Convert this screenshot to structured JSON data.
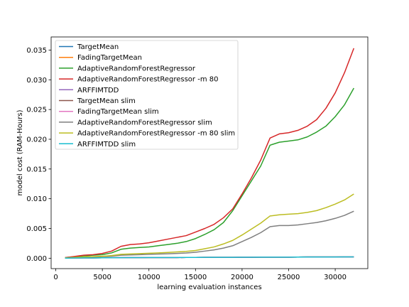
{
  "chart_data": {
    "type": "line",
    "xlabel": "learning evaluation instances",
    "ylabel": "model cost (RAM-Hours)",
    "xlim": [
      -500,
      33500
    ],
    "ylim": [
      -0.00175,
      0.0372
    ],
    "xticks": [
      0,
      5000,
      10000,
      15000,
      20000,
      25000,
      30000
    ],
    "xtick_labels": [
      "0",
      "5000",
      "10000",
      "15000",
      "20000",
      "25000",
      "30000"
    ],
    "yticks": [
      0.0,
      0.005,
      0.01,
      0.015,
      0.02,
      0.025,
      0.03,
      0.035
    ],
    "ytick_labels": [
      "0.000",
      "0.005",
      "0.010",
      "0.015",
      "0.020",
      "0.025",
      "0.030",
      "0.035"
    ],
    "grid": false,
    "legend_position": "top-left",
    "x": [
      1000,
      2000,
      3000,
      4000,
      5000,
      6000,
      7000,
      8000,
      9000,
      10000,
      11000,
      12000,
      13000,
      14000,
      15000,
      16000,
      17000,
      18000,
      19000,
      20000,
      21000,
      22000,
      23000,
      24000,
      25000,
      26000,
      27000,
      28000,
      29000,
      30000,
      31000,
      32000
    ],
    "series": [
      {
        "name": "TargetMean",
        "color": "#1f77b4",
        "values": [
          2e-05,
          4e-05,
          5e-05,
          6e-05,
          7e-05,
          8e-05,
          9e-05,
          0.0001,
          0.0001,
          0.00011,
          0.00011,
          0.00012,
          0.00012,
          0.00013,
          0.00013,
          0.00014,
          0.00014,
          0.00015,
          0.00015,
          0.00016,
          0.00016,
          0.00017,
          0.00017,
          0.00018,
          0.00018,
          0.00019,
          0.0002,
          0.0002,
          0.00021,
          0.00021,
          0.00022,
          0.00022
        ]
      },
      {
        "name": "FadingTargetMean",
        "color": "#ff7f0e",
        "values": [
          2e-05,
          4e-05,
          5e-05,
          6e-05,
          7e-05,
          8e-05,
          9e-05,
          0.0001,
          0.0001,
          0.00011,
          0.00011,
          0.00012,
          0.00012,
          0.00013,
          0.00013,
          0.00014,
          0.00014,
          0.00015,
          0.00015,
          0.00016,
          0.00016,
          0.00017,
          0.00017,
          0.00018,
          0.00018,
          0.00019,
          0.0002,
          0.0002,
          0.00021,
          0.00021,
          0.00022,
          0.00022
        ]
      },
      {
        "name": "AdaptiveRandomForestRegressor",
        "color": "#2ca02c",
        "values": [
          0.0001,
          0.00025,
          0.0004,
          0.0005,
          0.0006,
          0.0009,
          0.0015,
          0.0017,
          0.0018,
          0.0019,
          0.0021,
          0.0023,
          0.0025,
          0.0028,
          0.0033,
          0.004,
          0.0048,
          0.006,
          0.008,
          0.0105,
          0.013,
          0.0155,
          0.019,
          0.0195,
          0.0197,
          0.0199,
          0.0204,
          0.0212,
          0.0222,
          0.0238,
          0.0258,
          0.0286
        ]
      },
      {
        "name": "AdaptiveRandomForestRegressor -m 80",
        "color": "#d62728",
        "values": [
          0.0001,
          0.0003,
          0.0005,
          0.0006,
          0.0008,
          0.0012,
          0.002,
          0.0023,
          0.0024,
          0.0026,
          0.0029,
          0.0032,
          0.0035,
          0.0038,
          0.0044,
          0.005,
          0.0057,
          0.0068,
          0.0083,
          0.0108,
          0.0135,
          0.0165,
          0.0202,
          0.0209,
          0.0211,
          0.0215,
          0.0222,
          0.0233,
          0.0252,
          0.0278,
          0.0312,
          0.0353
        ]
      },
      {
        "name": "ARFFIMTDD",
        "color": "#9467bd",
        "values": [
          2e-05,
          4e-05,
          5e-05,
          6e-05,
          7e-05,
          8e-05,
          9e-05,
          0.0001,
          0.0001,
          0.00011,
          0.00011,
          0.00012,
          0.00012,
          0.00013,
          0.00013,
          0.00014,
          0.00014,
          0.00015,
          0.00015,
          0.00016,
          0.00016,
          0.00017,
          0.00017,
          0.00018,
          0.00018,
          0.00019,
          0.0002,
          0.0002,
          0.00021,
          0.00021,
          0.00022,
          0.00022
        ]
      },
      {
        "name": "TargetMean slim",
        "color": "#8c564b",
        "values": [
          2e-05,
          4e-05,
          5e-05,
          6e-05,
          7e-05,
          8e-05,
          9e-05,
          0.0001,
          0.0001,
          0.00011,
          0.00011,
          0.00012,
          0.00012,
          0.00013,
          0.00013,
          0.00014,
          0.00014,
          0.00015,
          0.00015,
          0.00016,
          0.00016,
          0.00017,
          0.00017,
          0.00018,
          0.00018,
          0.00019,
          0.0002,
          0.0002,
          0.00021,
          0.00021,
          0.00022,
          0.00022
        ]
      },
      {
        "name": "FadingTargetMean slim",
        "color": "#e377c2",
        "values": [
          2e-05,
          4e-05,
          5e-05,
          6e-05,
          7e-05,
          8e-05,
          9e-05,
          0.0001,
          0.0001,
          0.00011,
          0.00011,
          0.00012,
          0.00012,
          0.00013,
          0.00013,
          0.00014,
          0.00014,
          0.00015,
          0.00015,
          0.00016,
          0.00016,
          0.00017,
          0.00017,
          0.00018,
          0.00018,
          0.00019,
          0.0002,
          0.0002,
          0.00021,
          0.00021,
          0.00022,
          0.00022
        ]
      },
      {
        "name": "AdaptiveRandomForestRegressor slim",
        "color": "#7f7f7f",
        "values": [
          5e-05,
          0.00012,
          0.00018,
          0.00022,
          0.00026,
          0.00035,
          0.0005,
          0.00055,
          0.0006,
          0.00065,
          0.0007,
          0.00075,
          0.0008,
          0.00088,
          0.001,
          0.0012,
          0.0014,
          0.0017,
          0.0021,
          0.0028,
          0.0035,
          0.0043,
          0.0053,
          0.0055,
          0.0055,
          0.0056,
          0.0058,
          0.006,
          0.0063,
          0.0067,
          0.0072,
          0.0079
        ]
      },
      {
        "name": "AdaptiveRandomForestRegressor -m 80 slim",
        "color": "#bcbd22",
        "values": [
          6e-05,
          0.00015,
          0.00022,
          0.00027,
          0.00032,
          0.00045,
          0.00065,
          0.00072,
          0.00078,
          0.00083,
          0.0009,
          0.00097,
          0.00105,
          0.00115,
          0.0013,
          0.0016,
          0.0019,
          0.0024,
          0.003,
          0.0039,
          0.0049,
          0.0059,
          0.0071,
          0.0073,
          0.0074,
          0.0075,
          0.0077,
          0.008,
          0.0085,
          0.0091,
          0.0098,
          0.0108
        ]
      },
      {
        "name": "ARFFIMTDD slim",
        "color": "#17becf",
        "values": [
          2e-05,
          4e-05,
          5e-05,
          6e-05,
          7e-05,
          8e-05,
          9e-05,
          0.0001,
          0.0001,
          0.00011,
          0.00011,
          0.00012,
          0.00012,
          0.00013,
          0.00013,
          0.00014,
          0.00014,
          0.00015,
          0.00015,
          0.00016,
          0.00016,
          0.00017,
          0.00017,
          0.00018,
          0.00018,
          0.00019,
          0.0002,
          0.0002,
          0.00021,
          0.00021,
          0.00022,
          0.00022
        ]
      }
    ]
  }
}
